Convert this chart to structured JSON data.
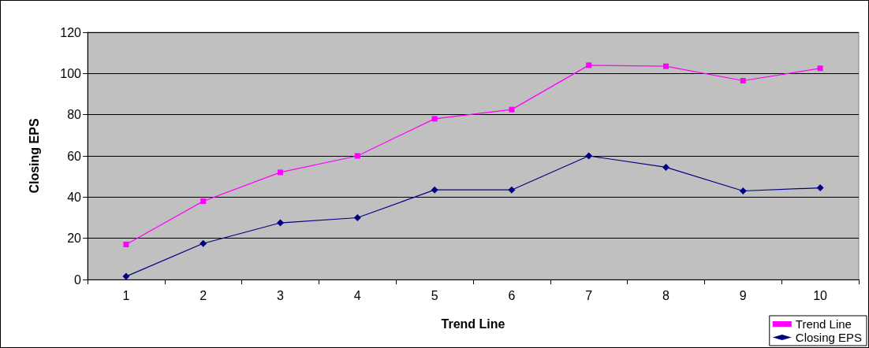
{
  "chart_data": {
    "type": "line",
    "xlabel": "Trend Line",
    "ylabel": "Closing EPS",
    "categories": [
      "1",
      "2",
      "3",
      "4",
      "5",
      "6",
      "7",
      "8",
      "9",
      "10"
    ],
    "series": [
      {
        "name": "Trend Line",
        "color": "#ff00ff",
        "marker": "square",
        "values": [
          17,
          38,
          52,
          60,
          78,
          82.5,
          104,
          103.5,
          96.5,
          102.5
        ]
      },
      {
        "name": "Closing EPS",
        "color": "#000080",
        "marker": "diamond",
        "values": [
          1.5,
          17.5,
          27.5,
          30,
          43.5,
          43.5,
          60,
          54.5,
          43,
          44.5
        ]
      }
    ],
    "ylim": [
      0,
      120
    ],
    "yticks": [
      0,
      20,
      40,
      60,
      80,
      100,
      120
    ],
    "grid": "y",
    "legend": "bottom right"
  }
}
